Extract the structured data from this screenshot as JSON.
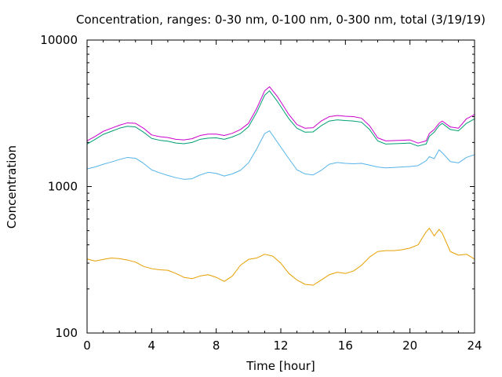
{
  "chart_data": {
    "type": "line",
    "title": "Concentration, ranges: 0-30 nm, 0-100 nm, 0-300 nm, total (3/19/19)",
    "xlabel": "Time [hour]",
    "ylabel": "Concentration",
    "xlim": [
      0,
      24
    ],
    "ylim": [
      100,
      10000
    ],
    "yscale": "log",
    "grid": false,
    "legend": "none",
    "x_ticks": [
      0,
      4,
      8,
      12,
      16,
      20,
      24
    ],
    "x_tick_labels": [
      "0",
      "4",
      "8",
      "12",
      "16",
      "20",
      "24"
    ],
    "y_ticks": [
      100,
      1000,
      10000
    ],
    "y_tick_labels": [
      "100",
      "1000",
      "10000"
    ],
    "series": [
      {
        "color": "#e69f00",
        "x": [
          0,
          0.5,
          1,
          1.5,
          2,
          2.5,
          3,
          3.5,
          4,
          4.5,
          5,
          5.5,
          6,
          6.5,
          7,
          7.5,
          8,
          8.5,
          9,
          9.5,
          10,
          10.5,
          11,
          11.5,
          12,
          12.5,
          13,
          13.5,
          14,
          14.5,
          15,
          15.5,
          16,
          16.5,
          17,
          17.5,
          18,
          18.5,
          19,
          19.5,
          20,
          20.5,
          21,
          21.2,
          21.5,
          21.8,
          22,
          22.5,
          23,
          23.5,
          24
        ],
        "y": [
          320,
          310,
          318,
          325,
          322,
          315,
          305,
          285,
          275,
          270,
          268,
          255,
          240,
          235,
          245,
          250,
          240,
          225,
          245,
          290,
          318,
          325,
          345,
          335,
          300,
          255,
          230,
          215,
          212,
          230,
          250,
          260,
          255,
          265,
          290,
          330,
          360,
          365,
          365,
          370,
          380,
          400,
          490,
          520,
          460,
          510,
          480,
          360,
          340,
          345,
          320
        ]
      },
      {
        "color": "#56b4e9",
        "x": [
          0,
          0.5,
          1,
          1.5,
          2,
          2.5,
          3,
          3.5,
          4,
          4.5,
          5,
          5.5,
          6,
          6.5,
          7,
          7.5,
          8,
          8.5,
          9,
          9.5,
          10,
          10.5,
          11,
          11.3,
          11.8,
          12.5,
          13,
          13.5,
          14,
          14.5,
          15,
          15.5,
          16,
          16.5,
          17,
          17.5,
          18,
          18.5,
          19,
          19.5,
          20,
          20.5,
          21,
          21.2,
          21.5,
          21.8,
          22,
          22.5,
          23,
          23.5,
          24
        ],
        "y": [
          1320,
          1360,
          1420,
          1470,
          1530,
          1580,
          1560,
          1440,
          1300,
          1240,
          1190,
          1150,
          1120,
          1130,
          1200,
          1250,
          1230,
          1180,
          1220,
          1290,
          1450,
          1800,
          2300,
          2400,
          2000,
          1550,
          1300,
          1220,
          1200,
          1290,
          1420,
          1460,
          1440,
          1430,
          1440,
          1400,
          1360,
          1340,
          1350,
          1360,
          1370,
          1390,
          1500,
          1600,
          1550,
          1780,
          1700,
          1480,
          1450,
          1580,
          1650
        ]
      },
      {
        "color": "#009e73",
        "x": [
          0,
          0.5,
          1,
          1.5,
          2,
          2.5,
          3,
          3.5,
          4,
          4.5,
          5,
          5.5,
          6,
          6.5,
          7,
          7.5,
          8,
          8.5,
          9,
          9.5,
          10,
          10.5,
          11,
          11.3,
          11.8,
          12.5,
          13,
          13.5,
          14,
          14.5,
          15,
          15.5,
          16,
          16.5,
          17,
          17.5,
          18,
          18.5,
          19,
          19.5,
          20,
          20.5,
          21,
          21.2,
          21.5,
          21.8,
          22,
          22.5,
          23,
          23.5,
          24
        ],
        "y": [
          1950,
          2100,
          2270,
          2380,
          2500,
          2580,
          2550,
          2350,
          2130,
          2070,
          2040,
          1980,
          1960,
          2000,
          2100,
          2140,
          2150,
          2100,
          2180,
          2300,
          2560,
          3200,
          4200,
          4500,
          3800,
          2900,
          2500,
          2350,
          2360,
          2600,
          2800,
          2850,
          2820,
          2800,
          2750,
          2450,
          2050,
          1950,
          1960,
          1970,
          1980,
          1890,
          1950,
          2200,
          2350,
          2600,
          2700,
          2450,
          2400,
          2700,
          2900
        ]
      },
      {
        "color": "#cc00cc",
        "x": [
          0,
          0.5,
          1,
          1.5,
          2,
          2.5,
          3,
          3.5,
          4,
          4.5,
          5,
          5.5,
          6,
          6.5,
          7,
          7.5,
          8,
          8.5,
          9,
          9.5,
          10,
          10.5,
          11,
          11.3,
          11.8,
          12.5,
          13,
          13.5,
          14,
          14.5,
          15,
          15.5,
          16,
          16.5,
          17,
          17.5,
          18,
          18.5,
          19,
          19.5,
          20,
          20.5,
          21,
          21.2,
          21.5,
          21.8,
          22,
          22.5,
          23,
          23.5,
          24
        ],
        "y": [
          2050,
          2200,
          2380,
          2500,
          2620,
          2720,
          2700,
          2500,
          2250,
          2190,
          2160,
          2100,
          2080,
          2120,
          2230,
          2280,
          2280,
          2230,
          2310,
          2450,
          2700,
          3400,
          4500,
          4800,
          4100,
          3100,
          2650,
          2500,
          2520,
          2800,
          3000,
          3050,
          3020,
          3000,
          2930,
          2600,
          2150,
          2050,
          2060,
          2070,
          2080,
          1980,
          2050,
          2300,
          2450,
          2700,
          2800,
          2550,
          2500,
          2900,
          3100
        ]
      }
    ]
  }
}
